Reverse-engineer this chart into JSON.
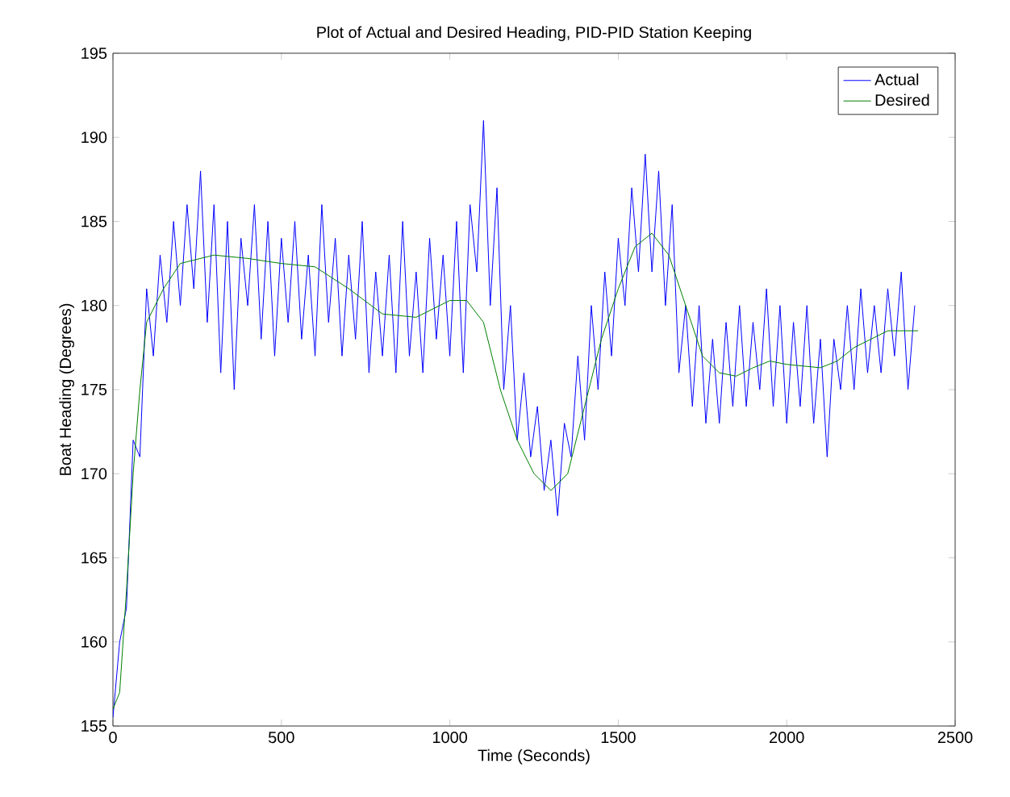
{
  "chart_data": {
    "type": "line",
    "title": "Plot of Actual and Desired Heading, PID-PID Station Keeping",
    "xlabel": "Time (Seconds)",
    "ylabel": "Boat Heading (Degrees)",
    "xlim": [
      0,
      2500
    ],
    "ylim": [
      155,
      195
    ],
    "xticks": [
      0,
      500,
      1000,
      1500,
      2000,
      2500
    ],
    "yticks": [
      155,
      160,
      165,
      170,
      175,
      180,
      185,
      190,
      195
    ],
    "legend": "top right",
    "marker": "none",
    "line_style": "solid",
    "series": [
      {
        "name": "Actual",
        "color": "#0000ff",
        "x": [
          0,
          20,
          40,
          60,
          80,
          100,
          120,
          140,
          160,
          180,
          200,
          220,
          240,
          260,
          280,
          300,
          320,
          340,
          360,
          380,
          400,
          420,
          440,
          460,
          480,
          500,
          520,
          540,
          560,
          580,
          600,
          620,
          640,
          660,
          680,
          700,
          720,
          740,
          760,
          780,
          800,
          820,
          840,
          860,
          880,
          900,
          920,
          940,
          960,
          980,
          1000,
          1020,
          1040,
          1060,
          1080,
          1100,
          1120,
          1140,
          1160,
          1180,
          1200,
          1220,
          1240,
          1260,
          1280,
          1300,
          1320,
          1340,
          1360,
          1380,
          1400,
          1420,
          1440,
          1460,
          1480,
          1500,
          1520,
          1540,
          1560,
          1580,
          1600,
          1620,
          1640,
          1660,
          1680,
          1700,
          1720,
          1740,
          1760,
          1780,
          1800,
          1820,
          1840,
          1860,
          1880,
          1900,
          1920,
          1940,
          1960,
          1980,
          2000,
          2020,
          2040,
          2060,
          2080,
          2100,
          2120,
          2140,
          2160,
          2180,
          2200,
          2220,
          2240,
          2260,
          2280,
          2300,
          2320,
          2340,
          2360,
          2380
        ],
        "values": [
          155.5,
          160,
          162,
          172,
          171,
          181,
          177,
          183,
          179,
          185,
          180,
          186,
          181,
          188,
          179,
          186,
          176,
          185,
          175,
          184,
          180,
          186,
          178,
          185,
          177,
          184,
          179,
          185,
          178,
          183,
          177,
          186,
          179,
          184,
          177,
          183,
          178,
          185,
          176,
          182,
          177,
          183,
          176,
          185,
          177,
          182,
          176,
          184,
          178,
          183,
          177,
          185,
          176,
          186,
          182,
          191,
          180,
          187,
          175,
          180,
          172,
          176,
          171,
          174,
          169,
          172,
          167.5,
          173,
          171,
          177,
          172,
          180,
          175,
          182,
          177,
          184,
          180,
          187,
          182,
          189,
          182,
          188,
          180,
          186,
          176,
          180,
          174,
          180,
          173,
          178,
          173,
          179,
          174,
          180,
          174,
          179,
          175,
          181,
          174,
          180,
          173,
          179,
          174,
          180,
          173,
          178,
          171,
          178,
          175,
          180,
          175,
          181,
          176,
          180,
          176,
          181,
          177,
          182,
          175,
          180
        ]
      },
      {
        "name": "Desired",
        "color": "#008000",
        "x": [
          0,
          20,
          40,
          60,
          80,
          100,
          150,
          200,
          300,
          400,
          500,
          600,
          700,
          800,
          900,
          1000,
          1050,
          1100,
          1150,
          1200,
          1250,
          1300,
          1350,
          1400,
          1450,
          1500,
          1550,
          1600,
          1650,
          1700,
          1750,
          1800,
          1850,
          1900,
          1950,
          2000,
          2100,
          2150,
          2200,
          2300,
          2390
        ],
        "values": [
          156,
          157,
          163,
          170,
          175,
          179,
          181,
          182.5,
          183,
          182.8,
          182.5,
          182.3,
          181,
          179.5,
          179.3,
          180.3,
          180.3,
          179,
          175,
          172,
          170,
          169,
          170,
          174,
          178,
          181,
          183.5,
          184.3,
          183,
          180,
          177,
          176,
          175.8,
          176.3,
          176.7,
          176.5,
          176.3,
          176.7,
          177.5,
          178.5,
          178.5
        ]
      }
    ]
  }
}
